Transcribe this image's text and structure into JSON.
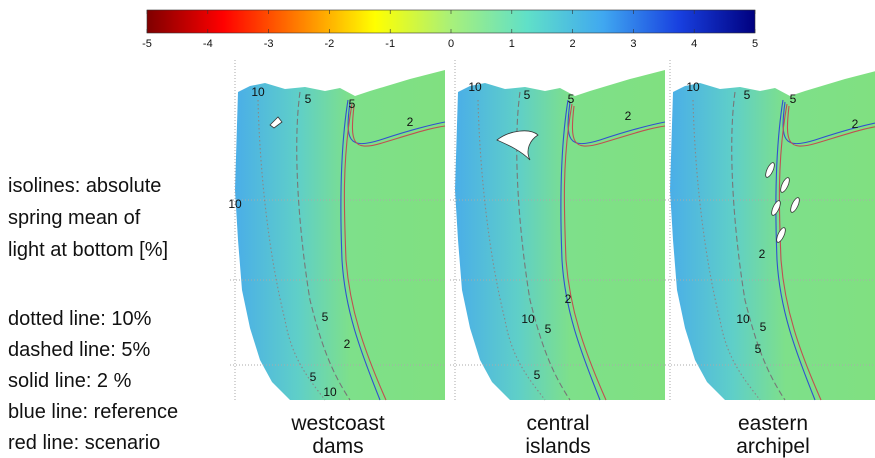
{
  "colorbar": {
    "lim": [
      -5,
      5
    ],
    "ticks": [
      -5,
      -4,
      -3,
      -2,
      -1,
      0,
      1,
      2,
      3,
      4,
      5
    ],
    "colors": [
      "#7f0000",
      "#ff0000",
      "#ff7f00",
      "#ffff00",
      "#a8f07a",
      "#60e0c8",
      "#40a8f0",
      "#1840e0",
      "#00007f"
    ]
  },
  "legend": {
    "title_lines": [
      "isolines: absolute",
      "spring mean of",
      "light at bottom [%]"
    ],
    "items": [
      "dotted line: 10%",
      "dashed line: 5%",
      "solid line: 2 %",
      "blue line: reference",
      "red line: scenario"
    ]
  },
  "panels": [
    {
      "label_lines": [
        "westcoast",
        "dams"
      ],
      "isoline_labels": [
        10,
        5,
        5,
        2,
        10,
        2,
        5,
        5,
        10
      ]
    },
    {
      "label_lines": [
        "central",
        "islands"
      ],
      "isoline_labels": [
        10,
        5,
        5,
        2,
        2,
        10,
        5,
        5
      ]
    },
    {
      "label_lines": [
        "eastern",
        "archipel"
      ],
      "isoline_labels": [
        10,
        5,
        5,
        2,
        2,
        10,
        5,
        5
      ]
    }
  ]
}
